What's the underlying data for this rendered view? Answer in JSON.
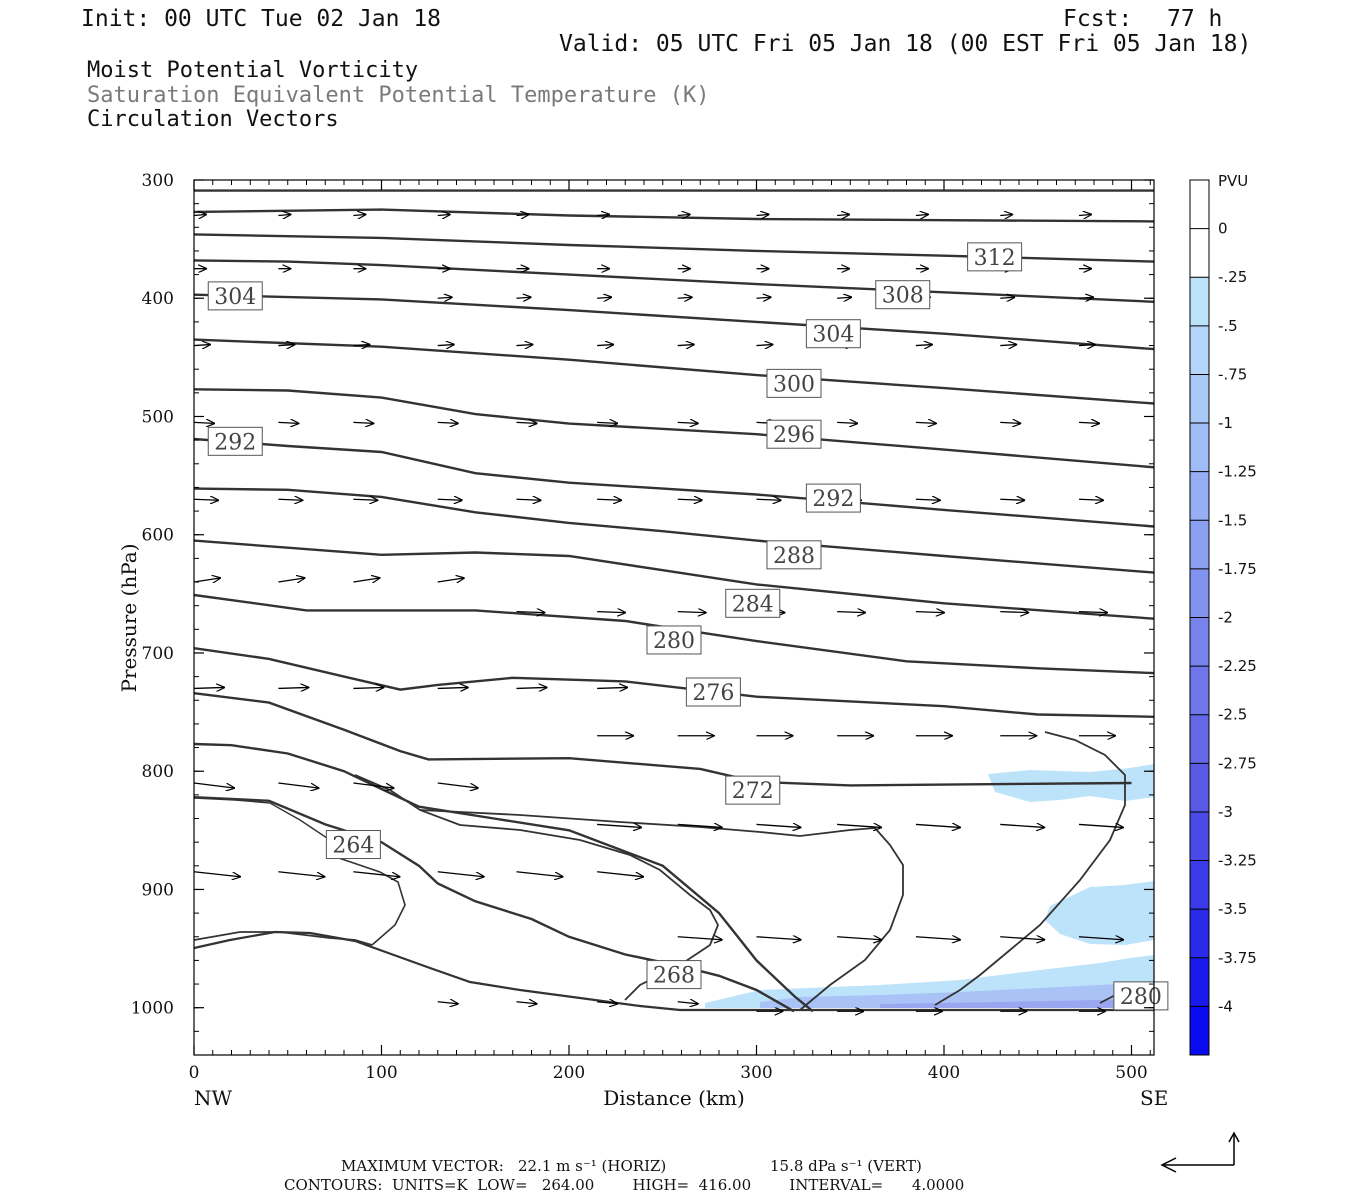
{
  "header": {
    "init": "Init: 00 UTC Tue 02 Jan 18",
    "fcst_label": "Fcst:",
    "fcst_value": "77 h",
    "valid": "Valid: 05 UTC Fri 05 Jan 18 (00 EST Fri 05 Jan 18)",
    "field1": "Moist Potential Vorticity",
    "field2": "Saturation Equivalent Potential Temperature (K)",
    "field3": "Circulation Vectors"
  },
  "footer": {
    "max_vector_label": "MAXIMUM VECTOR:",
    "max_horiz": "22.1 m s⁻¹ (HORIZ)",
    "max_vert": "15.8 dPa s⁻¹ (VERT)",
    "contours_line": "CONTOURS:  UNITS=K  LOW=   264.00        HIGH=  416.00        INTERVAL=      4.0000"
  },
  "colors": {
    "contour": "#333333",
    "pv_light": "#bde3fb",
    "pv_mid": "#a9c3f6",
    "pv_dark": "#9aa6f0"
  },
  "chart_data": {
    "type": "cross-section",
    "xlabel": "Distance (km)",
    "ylabel": "Pressure (hPa)",
    "x_ticks": [
      0,
      100,
      200,
      300,
      400,
      500
    ],
    "y_ticks": [
      300,
      400,
      500,
      600,
      700,
      800,
      900,
      1000
    ],
    "xlim": [
      0,
      512
    ],
    "ylim": [
      300,
      1040
    ],
    "x_end_labels": {
      "left": "NW",
      "right": "SE"
    },
    "colorbar": {
      "units": "PVU",
      "levels": [
        "0",
        "-.25",
        "-.5",
        "-.75",
        "-1",
        "-1.25",
        "-1.5",
        "-1.75",
        "-2",
        "-2.25",
        "-2.5",
        "-2.75",
        "-3",
        "-3.25",
        "-3.5",
        "-3.75",
        "-4"
      ],
      "colors": [
        "#ffffff",
        "#ffffff",
        "#bde3fb",
        "#b3d6fa",
        "#a9c9f8",
        "#a0bcf6",
        "#96aef3",
        "#8ca0f1",
        "#8292ef",
        "#7884ec",
        "#6e76ea",
        "#6468e7",
        "#5a5ae5",
        "#4a4ae6",
        "#3a3ae8",
        "#2a2aea",
        "#1a1aec",
        "#0a0aef"
      ]
    },
    "contour_labels": [
      {
        "label": "312",
        "x": 427,
        "p": 365
      },
      {
        "label": "308",
        "x": 378,
        "p": 397
      },
      {
        "label": "304",
        "x": 22,
        "p": 398
      },
      {
        "label": "304",
        "x": 341,
        "p": 430
      },
      {
        "label": "300",
        "x": 320,
        "p": 472
      },
      {
        "label": "296",
        "x": 320,
        "p": 515
      },
      {
        "label": "292",
        "x": 22,
        "p": 521
      },
      {
        "label": "292",
        "x": 341,
        "p": 569
      },
      {
        "label": "288",
        "x": 320,
        "p": 617
      },
      {
        "label": "284",
        "x": 298,
        "p": 658
      },
      {
        "label": "280",
        "x": 256,
        "p": 689
      },
      {
        "label": "276",
        "x": 277,
        "p": 733
      },
      {
        "label": "272",
        "x": 298,
        "p": 816
      },
      {
        "label": "264",
        "x": 85,
        "p": 862
      },
      {
        "label": "268",
        "x": 256,
        "p": 972
      },
      {
        "label": "280",
        "x": 505,
        "p": 990
      }
    ],
    "isentropes": [
      [
        [
          0,
          309
        ],
        [
          512,
          309
        ]
      ],
      [
        [
          0,
          327
        ],
        [
          100,
          325
        ],
        [
          200,
          330
        ],
        [
          300,
          333
        ],
        [
          400,
          334
        ],
        [
          512,
          335
        ]
      ],
      [
        [
          0,
          346
        ],
        [
          100,
          349
        ],
        [
          200,
          355
        ],
        [
          300,
          360
        ],
        [
          400,
          364
        ],
        [
          512,
          369
        ]
      ],
      [
        [
          0,
          368
        ],
        [
          50,
          369
        ],
        [
          100,
          372
        ],
        [
          200,
          380
        ],
        [
          300,
          388
        ],
        [
          400,
          395
        ],
        [
          512,
          403
        ]
      ],
      [
        [
          0,
          397
        ],
        [
          100,
          401
        ],
        [
          200,
          410
        ],
        [
          300,
          420
        ],
        [
          400,
          430
        ],
        [
          512,
          443
        ]
      ],
      [
        [
          0,
          435
        ],
        [
          100,
          441
        ],
        [
          200,
          452
        ],
        [
          300,
          465
        ],
        [
          400,
          476
        ],
        [
          512,
          489
        ]
      ],
      [
        [
          0,
          477
        ],
        [
          50,
          478
        ],
        [
          100,
          484
        ],
        [
          150,
          498
        ],
        [
          200,
          506
        ],
        [
          300,
          515
        ],
        [
          400,
          528
        ],
        [
          512,
          543
        ]
      ],
      [
        [
          0,
          519
        ],
        [
          50,
          525
        ],
        [
          100,
          530
        ],
        [
          150,
          548
        ],
        [
          200,
          556
        ],
        [
          300,
          566
        ],
        [
          400,
          579
        ],
        [
          512,
          593
        ]
      ],
      [
        [
          0,
          561
        ],
        [
          50,
          562
        ],
        [
          100,
          568
        ],
        [
          150,
          581
        ],
        [
          200,
          590
        ],
        [
          250,
          597
        ],
        [
          300,
          605
        ],
        [
          400,
          618
        ],
        [
          512,
          632
        ]
      ],
      [
        [
          0,
          605
        ],
        [
          50,
          611
        ],
        [
          100,
          617
        ],
        [
          150,
          615
        ],
        [
          200,
          618
        ],
        [
          250,
          630
        ],
        [
          300,
          642
        ],
        [
          400,
          658
        ],
        [
          512,
          671
        ]
      ],
      [
        [
          0,
          651
        ],
        [
          60,
          664
        ],
        [
          150,
          664
        ],
        [
          230,
          673
        ],
        [
          300,
          690
        ],
        [
          380,
          707
        ],
        [
          450,
          713
        ],
        [
          512,
          717
        ]
      ],
      [
        [
          0,
          696
        ],
        [
          40,
          705
        ],
        [
          80,
          720
        ],
        [
          110,
          731
        ],
        [
          130,
          727
        ],
        [
          170,
          721
        ],
        [
          230,
          724
        ],
        [
          300,
          737
        ],
        [
          400,
          745
        ],
        [
          450,
          752
        ],
        [
          512,
          754
        ]
      ],
      [
        [
          0,
          734
        ],
        [
          40,
          742
        ],
        [
          80,
          765
        ],
        [
          110,
          783
        ],
        [
          125,
          790
        ],
        [
          200,
          789
        ],
        [
          270,
          798
        ],
        [
          300,
          809
        ],
        [
          350,
          812
        ],
        [
          500,
          810
        ]
      ],
      [
        [
          0,
          777
        ],
        [
          20,
          778
        ],
        [
          50,
          785
        ],
        [
          80,
          800
        ],
        [
          100,
          815
        ],
        [
          120,
          830
        ],
        [
          160,
          840
        ],
        [
          200,
          850
        ],
        [
          250,
          880
        ],
        [
          280,
          920
        ],
        [
          290,
          940
        ],
        [
          300,
          960
        ],
        [
          320,
          990
        ],
        [
          330,
          1003
        ]
      ],
      [
        [
          0,
          822
        ],
        [
          40,
          825
        ],
        [
          70,
          845
        ],
        [
          100,
          860
        ],
        [
          120,
          880
        ],
        [
          130,
          895
        ],
        [
          150,
          910
        ],
        [
          180,
          925
        ],
        [
          200,
          940
        ],
        [
          230,
          955
        ],
        [
          260,
          965
        ],
        [
          280,
          973
        ],
        [
          300,
          985
        ],
        [
          320,
          1003
        ]
      ]
    ]
  }
}
